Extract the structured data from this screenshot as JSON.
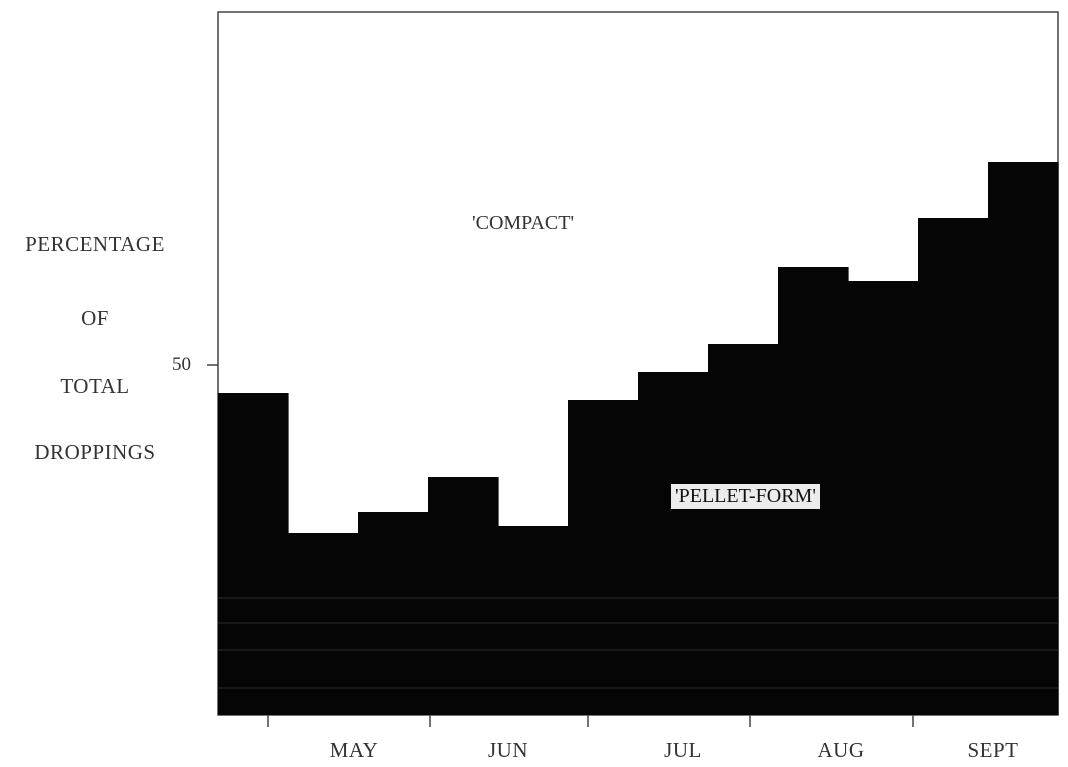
{
  "chart_data": {
    "type": "bar",
    "ylabel_lines": [
      "PERCENTAGE",
      "OF",
      "TOTAL",
      "DROPPINGS"
    ],
    "xlabel": "",
    "months": [
      "MAY",
      "JUN",
      "JUL",
      "AUG",
      "SEPT"
    ],
    "ytick_label": "50",
    "ytick_value": 50,
    "ylim": [
      0,
      100
    ],
    "series": [
      {
        "name": "'PELLET-FORM'",
        "values": [
          46,
          26,
          29,
          34,
          27,
          45,
          49,
          53,
          64,
          62,
          71,
          79
        ]
      }
    ],
    "annotations": {
      "upper_region": "'COMPACT'",
      "lower_region": "'PELLET-FORM'"
    },
    "colors": {
      "fill": "#050505",
      "frame": "#444444",
      "background": "#ffffff"
    },
    "grid": false
  }
}
